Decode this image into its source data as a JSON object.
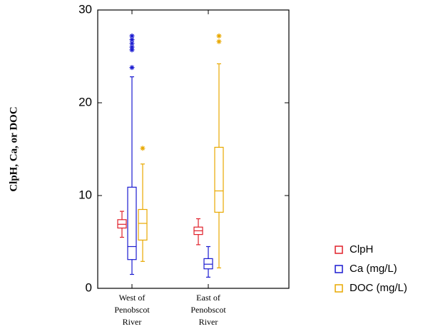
{
  "chart_data": {
    "type": "box",
    "y_label": "ClpH, Ca, or DOC",
    "categories": [
      [
        "West of",
        "Penobscot",
        "River"
      ],
      [
        "East of",
        "Penobscot",
        "River"
      ]
    ],
    "ylim": [
      0,
      30
    ],
    "yticks": [
      0,
      10,
      20,
      30
    ],
    "legend": "lower-right",
    "series": [
      {
        "name": "ClpH",
        "color": "#e0202a",
        "values": [
          {
            "min": 5.5,
            "q1": 6.5,
            "median": 6.9,
            "q3": 7.4,
            "max": 8.3,
            "outliers": []
          },
          {
            "min": 4.7,
            "q1": 5.8,
            "median": 6.2,
            "q3": 6.6,
            "max": 7.5,
            "outliers": []
          }
        ]
      },
      {
        "name": "Ca (mg/L)",
        "color": "#1a1ad0",
        "values": [
          {
            "min": 1.5,
            "q1": 3.1,
            "median": 4.5,
            "q3": 10.9,
            "max": 22.8,
            "outliers": [
              23.8,
              25.7,
              26.0,
              26.4,
              26.8,
              27.2
            ]
          },
          {
            "min": 1.2,
            "q1": 2.1,
            "median": 2.6,
            "q3": 3.2,
            "max": 4.5,
            "outliers": []
          }
        ]
      },
      {
        "name": "DOC (mg/L)",
        "color": "#e8a800",
        "values": [
          {
            "min": 2.9,
            "q1": 5.2,
            "median": 7.0,
            "q3": 8.5,
            "max": 13.4,
            "outliers": [
              15.1
            ]
          },
          {
            "min": 2.2,
            "q1": 8.2,
            "median": 10.5,
            "q3": 15.2,
            "max": 24.2,
            "outliers": [
              26.6,
              27.2
            ]
          }
        ]
      }
    ]
  }
}
